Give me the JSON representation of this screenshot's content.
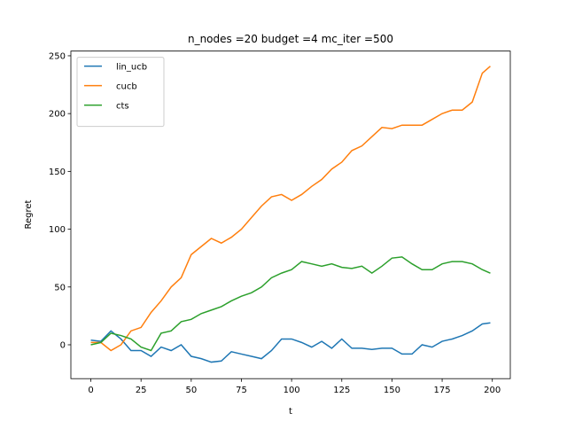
{
  "chart_data": {
    "type": "line",
    "title": "n_nodes =20 budget =4 mc_iter =500",
    "x_label": "t",
    "y_label": "Regret",
    "x": [
      0,
      5,
      10,
      15,
      20,
      25,
      30,
      35,
      40,
      45,
      50,
      55,
      60,
      65,
      70,
      75,
      80,
      85,
      90,
      95,
      100,
      105,
      110,
      115,
      120,
      125,
      130,
      135,
      140,
      145,
      150,
      155,
      160,
      165,
      170,
      175,
      180,
      185,
      190,
      195,
      199
    ],
    "series": [
      {
        "name": "lin_ucb",
        "color": "#1f77b4",
        "values": [
          4,
          3,
          12,
          5,
          -5,
          -5,
          -10,
          -2,
          -5,
          0,
          -10,
          -12,
          -15,
          -14,
          -6,
          -8,
          -10,
          -12,
          -5,
          5,
          5,
          2,
          -2,
          3,
          -3,
          5,
          -3,
          -3,
          -4,
          -3,
          -3,
          -8,
          -8,
          0,
          -2,
          3,
          5,
          8,
          12,
          18,
          19
        ]
      },
      {
        "name": "cucb",
        "color": "#ff7f0e",
        "values": [
          2,
          2,
          -5,
          0,
          12,
          15,
          28,
          38,
          50,
          58,
          78,
          85,
          92,
          88,
          93,
          100,
          110,
          120,
          128,
          130,
          125,
          130,
          137,
          143,
          152,
          158,
          168,
          172,
          180,
          188,
          187,
          190,
          190,
          190,
          195,
          200,
          203,
          203,
          210,
          235,
          241
        ]
      },
      {
        "name": "cts",
        "color": "#2ca02c",
        "values": [
          0,
          2,
          10,
          8,
          5,
          -2,
          -5,
          10,
          12,
          20,
          22,
          27,
          30,
          33,
          38,
          42,
          45,
          50,
          58,
          62,
          65,
          72,
          70,
          68,
          70,
          67,
          66,
          68,
          62,
          68,
          75,
          76,
          70,
          65,
          65,
          70,
          72,
          72,
          70,
          65,
          62
        ]
      }
    ],
    "xlim": [
      -9.95,
      208.95
    ],
    "ylim": [
      -29.3,
      254.1
    ],
    "xticks": [
      0,
      25,
      50,
      75,
      100,
      125,
      150,
      175,
      200
    ],
    "yticks": [
      0,
      50,
      100,
      150,
      200,
      250
    ],
    "legend": "upper left"
  }
}
